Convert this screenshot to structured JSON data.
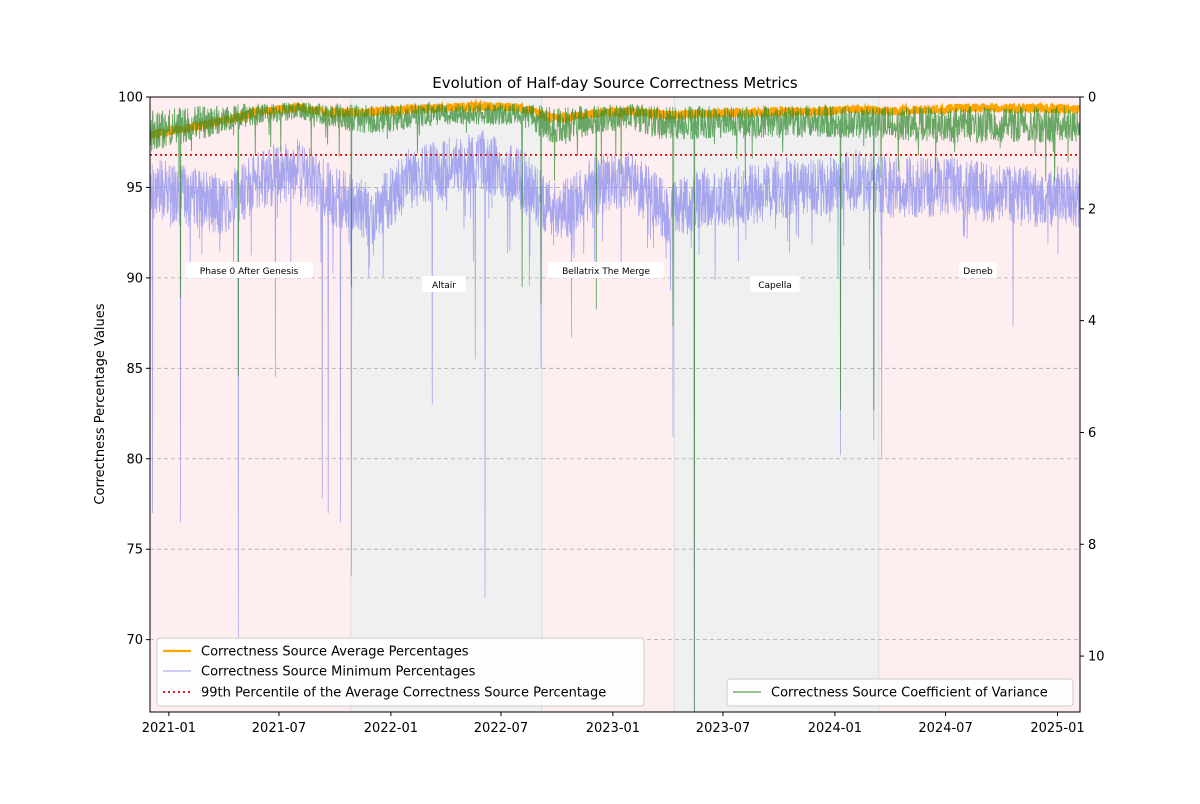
{
  "chart_data": {
    "type": "line",
    "title": "Evolution of Half-day Source Correctness Metrics",
    "xlabel": "",
    "ylabel": "Correctness Percentage Values",
    "y2label": "",
    "xlim": [
      "2020-12-01",
      "2025-02-07"
    ],
    "ylim": [
      66,
      100
    ],
    "y2lim": [
      11,
      0
    ],
    "y2_inverted": true,
    "x_ticks": [
      "2021-01",
      "2021-07",
      "2022-01",
      "2022-07",
      "2023-01",
      "2023-07",
      "2024-01",
      "2024-07",
      "2025-01"
    ],
    "y_ticks": [
      70,
      75,
      80,
      85,
      90,
      95,
      100
    ],
    "y2_ticks": [
      0,
      2,
      4,
      6,
      8,
      10
    ],
    "grid": "horizontal dashed",
    "phases": [
      {
        "name": "Phase 0 After Genesis",
        "start": "2020-12-01",
        "end": "2021-10-27",
        "color": "#ffeef0"
      },
      {
        "name": "Altair",
        "start": "2021-10-27",
        "end": "2022-09-06",
        "color": "#f0f0f0"
      },
      {
        "name": "Bellatrix The Merge",
        "start": "2022-09-06",
        "end": "2023-04-12",
        "color": "#ffeef0"
      },
      {
        "name": "Capella",
        "start": "2023-04-12",
        "end": "2024-03-13",
        "color": "#f0f0f0"
      },
      {
        "name": "Deneb",
        "start": "2024-03-13",
        "end": "2025-02-07",
        "color": "#ffeef0"
      }
    ],
    "series": [
      {
        "name": "Correctness Source Average Percentages",
        "axis": "left",
        "color": "#ffa500",
        "x": [
          "2020-12-01",
          "2021-02-01",
          "2021-04-01",
          "2021-06-01",
          "2021-08-01",
          "2021-10-01",
          "2021-12-01",
          "2022-02-01",
          "2022-04-01",
          "2022-06-01",
          "2022-08-01",
          "2022-10-01",
          "2022-12-01",
          "2023-02-01",
          "2023-04-01",
          "2023-06-01",
          "2023-08-01",
          "2023-10-01",
          "2023-12-01",
          "2024-02-01",
          "2024-04-01",
          "2024-06-01",
          "2024-08-01",
          "2024-10-01",
          "2024-12-01",
          "2025-02-07"
        ],
        "values": [
          97.9,
          98.3,
          98.7,
          99.2,
          99.4,
          99.1,
          99.2,
          99.3,
          99.4,
          99.5,
          99.4,
          98.8,
          99.1,
          99.2,
          99.0,
          99.1,
          99.1,
          99.2,
          99.2,
          99.3,
          99.2,
          99.3,
          99.4,
          99.4,
          99.4,
          99.3
        ]
      },
      {
        "name": "Correctness Source Minimum Percentages",
        "axis": "left",
        "color": "#9999ee",
        "x": [
          "2020-12-01",
          "2021-02-01",
          "2021-04-01",
          "2021-06-01",
          "2021-08-01",
          "2021-10-01",
          "2021-12-01",
          "2022-02-01",
          "2022-04-01",
          "2022-06-01",
          "2022-08-01",
          "2022-10-01",
          "2022-12-01",
          "2023-02-01",
          "2023-04-01",
          "2023-06-01",
          "2023-08-01",
          "2023-10-01",
          "2023-12-01",
          "2024-02-01",
          "2024-04-01",
          "2024-06-01",
          "2024-08-01",
          "2024-10-01",
          "2024-12-01",
          "2025-02-07"
        ],
        "values": [
          95.0,
          94.5,
          94.0,
          95.5,
          96.0,
          94.5,
          93.5,
          95.5,
          96.0,
          96.5,
          95.5,
          93.5,
          95.0,
          95.5,
          93.5,
          94.5,
          94.5,
          95.0,
          95.0,
          95.5,
          95.0,
          95.0,
          95.0,
          94.5,
          94.5,
          94.5
        ],
        "dips": [
          {
            "x": "2020-12-05",
            "value": 77.0
          },
          {
            "x": "2021-01-20",
            "value": 76.5
          },
          {
            "x": "2021-04-25",
            "value": 70.0
          },
          {
            "x": "2021-06-25",
            "value": 84.5
          },
          {
            "x": "2021-09-10",
            "value": 77.8
          },
          {
            "x": "2021-09-20",
            "value": 77.0
          },
          {
            "x": "2021-10-10",
            "value": 76.5
          },
          {
            "x": "2021-10-28",
            "value": 73.5
          },
          {
            "x": "2022-03-10",
            "value": 83.0
          },
          {
            "x": "2022-05-20",
            "value": 85.5
          },
          {
            "x": "2022-06-05",
            "value": 72.3
          },
          {
            "x": "2022-09-05",
            "value": 85.0
          },
          {
            "x": "2022-10-25",
            "value": 86.7
          },
          {
            "x": "2023-04-10",
            "value": 81.2
          },
          {
            "x": "2023-05-15",
            "value": 66.0
          },
          {
            "x": "2024-01-10",
            "value": 80.2
          },
          {
            "x": "2024-03-05",
            "value": 81.0
          },
          {
            "x": "2024-03-18",
            "value": 80.0
          },
          {
            "x": "2024-10-20",
            "value": 87.3
          }
        ]
      },
      {
        "name": "99th Percentile of the Average Correctness Source Percentage",
        "axis": "left",
        "color": "#dd0000",
        "style": "dotted",
        "x": [
          "2020-12-01",
          "2025-02-07"
        ],
        "values": [
          96.8,
          96.8
        ]
      },
      {
        "name": "Correctness Source Coefficient of Variance",
        "axis": "right",
        "color": "#2e8b2e",
        "x": [
          "2020-12-01",
          "2021-02-01",
          "2021-04-01",
          "2021-06-01",
          "2021-08-01",
          "2021-10-01",
          "2021-12-01",
          "2022-02-01",
          "2022-04-01",
          "2022-06-01",
          "2022-08-01",
          "2022-10-01",
          "2022-12-01",
          "2023-02-01",
          "2023-04-01",
          "2023-06-01",
          "2023-08-01",
          "2023-10-01",
          "2023-12-01",
          "2024-02-01",
          "2024-04-01",
          "2024-06-01",
          "2024-08-01",
          "2024-10-01",
          "2024-12-01",
          "2025-02-07"
        ],
        "values": [
          0.6,
          0.5,
          0.4,
          0.3,
          0.25,
          0.35,
          0.4,
          0.35,
          0.3,
          0.3,
          0.3,
          0.55,
          0.4,
          0.35,
          0.5,
          0.45,
          0.45,
          0.45,
          0.45,
          0.45,
          0.45,
          0.5,
          0.5,
          0.5,
          0.5,
          0.5
        ],
        "spikes": [
          {
            "x": "2021-01-20",
            "value": 3.6
          },
          {
            "x": "2021-04-25",
            "value": 5.0
          },
          {
            "x": "2021-10-28",
            "value": 3.4
          },
          {
            "x": "2022-08-05",
            "value": 3.4
          },
          {
            "x": "2022-09-05",
            "value": 3.7
          },
          {
            "x": "2022-12-05",
            "value": 3.8
          },
          {
            "x": "2023-04-10",
            "value": 4.1
          },
          {
            "x": "2023-05-15",
            "value": 11.0
          },
          {
            "x": "2024-01-10",
            "value": 5.6
          },
          {
            "x": "2024-03-05",
            "value": 5.6
          }
        ]
      }
    ],
    "legend_left": {
      "placement": "lower-left",
      "entries": [
        "Correctness Source Average Percentages",
        "Correctness Source Minimum Percentages",
        "99th Percentile of the Average Correctness Source Percentage"
      ]
    },
    "legend_right": {
      "placement": "lower-right",
      "entries": [
        "Correctness Source Coefficient of Variance"
      ]
    }
  }
}
